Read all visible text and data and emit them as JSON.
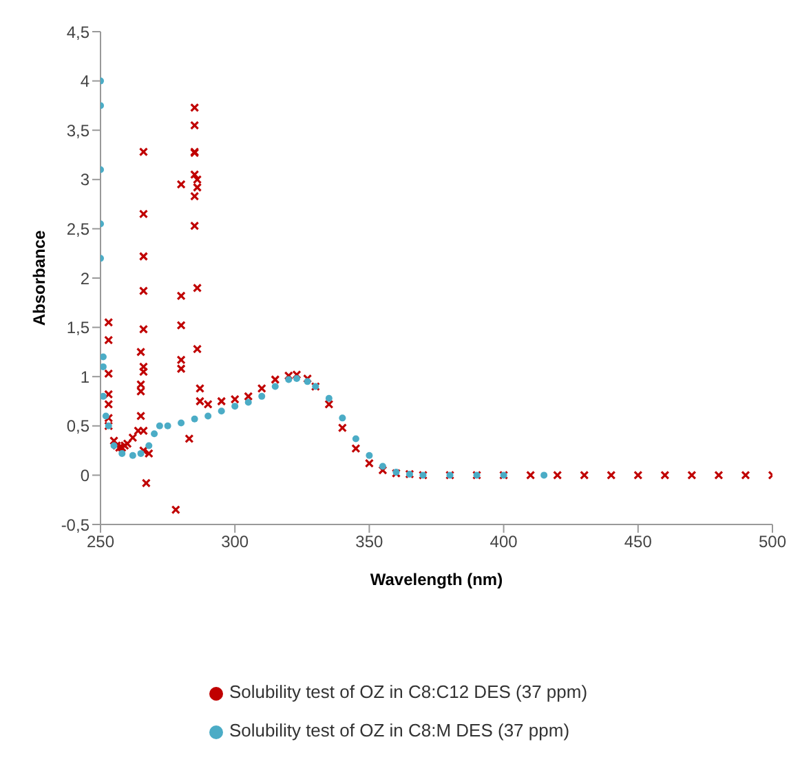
{
  "chart_data": {
    "type": "scatter",
    "xlabel": "Wavelength (nm)",
    "ylabel": "Absorbance",
    "xlim": [
      250,
      500
    ],
    "xticks": [
      250,
      300,
      350,
      400,
      450,
      500
    ],
    "ylim": [
      -0.5,
      4.5
    ],
    "yticks": [
      {
        "value": -0.5,
        "label": "-0,5"
      },
      0,
      {
        "value": 0.5,
        "label": "0,5"
      },
      1,
      {
        "value": 1.5,
        "label": "1,5"
      },
      2,
      {
        "value": 2.5,
        "label": "2,5"
      },
      3,
      {
        "value": 3.5,
        "label": "3,5"
      },
      4,
      {
        "value": 4.5,
        "label": "4,5"
      }
    ],
    "grid": false,
    "legend": "bottom",
    "series": [
      {
        "name": "Solubility test of OZ in C8:C12 DES (37 ppm)",
        "color": "#c00000",
        "marker": "cross",
        "x": [
          253,
          253,
          253,
          253,
          253,
          253,
          253,
          255,
          256,
          257,
          258,
          259,
          260,
          262,
          264,
          265,
          265,
          265,
          265,
          266,
          266,
          266,
          266,
          266,
          266,
          266,
          266,
          266,
          267,
          268,
          278,
          280,
          280,
          280,
          280,
          280,
          283,
          285,
          285,
          285,
          285,
          285,
          285,
          285,
          286,
          286,
          286,
          286,
          287,
          287,
          290,
          295,
          300,
          305,
          310,
          315,
          320,
          323,
          327,
          330,
          335,
          340,
          345,
          350,
          355,
          360,
          365,
          370,
          380,
          390,
          400,
          410,
          420,
          430,
          440,
          450,
          460,
          470,
          480,
          490,
          500
        ],
        "values": [
          1.55,
          1.37,
          1.03,
          0.82,
          0.72,
          0.58,
          0.5,
          0.35,
          0.3,
          0.28,
          0.28,
          0.3,
          0.32,
          0.38,
          0.45,
          1.25,
          0.92,
          0.85,
          0.6,
          3.28,
          2.65,
          2.22,
          1.87,
          1.48,
          1.1,
          1.05,
          0.45,
          0.25,
          -0.08,
          0.22,
          -0.35,
          2.95,
          1.82,
          1.52,
          1.17,
          1.08,
          0.37,
          3.73,
          3.55,
          3.28,
          3.27,
          3.05,
          2.83,
          2.53,
          3.0,
          2.92,
          1.9,
          1.28,
          0.88,
          0.75,
          0.72,
          0.75,
          0.77,
          0.8,
          0.88,
          0.97,
          1.01,
          1.02,
          0.98,
          0.9,
          0.72,
          0.48,
          0.27,
          0.12,
          0.05,
          0.02,
          0.01,
          0,
          0,
          0,
          0,
          0,
          0,
          0,
          0,
          0,
          0,
          0,
          0,
          0,
          0
        ]
      },
      {
        "name": "Solubility test of OZ in C8:M DES (37 ppm)",
        "color": "#4bacc6",
        "marker": "circle",
        "x": [
          250,
          250,
          250,
          250,
          250,
          251,
          251,
          251,
          252,
          253,
          255,
          258,
          262,
          265,
          268,
          270,
          272,
          275,
          280,
          285,
          290,
          295,
          300,
          305,
          310,
          315,
          320,
          323,
          327,
          330,
          335,
          340,
          345,
          350,
          355,
          360,
          365,
          370,
          380,
          390,
          400,
          415
        ],
        "values": [
          4.0,
          3.75,
          3.1,
          2.55,
          2.2,
          1.2,
          1.1,
          0.8,
          0.6,
          0.5,
          0.3,
          0.22,
          0.2,
          0.22,
          0.3,
          0.42,
          0.5,
          0.5,
          0.53,
          0.57,
          0.6,
          0.65,
          0.7,
          0.74,
          0.8,
          0.9,
          0.97,
          0.98,
          0.95,
          0.9,
          0.78,
          0.58,
          0.37,
          0.2,
          0.09,
          0.03,
          0.01,
          0,
          0,
          0,
          0,
          0
        ]
      }
    ]
  }
}
